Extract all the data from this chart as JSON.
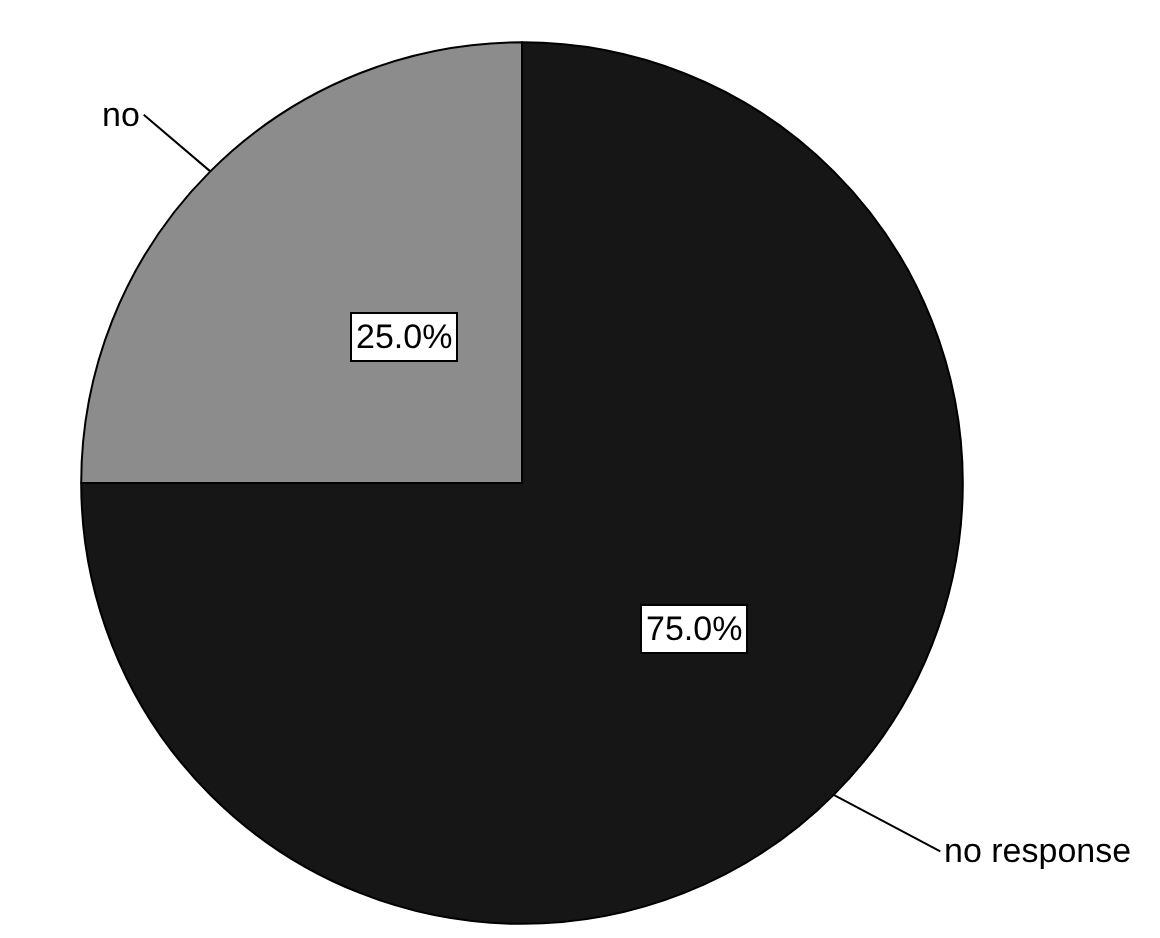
{
  "chart_data": {
    "type": "pie",
    "categories": [
      "no response",
      "no"
    ],
    "values": [
      75,
      25
    ],
    "colors": [
      "#161616",
      "#8c8c8c"
    ],
    "value_labels": [
      "75.0%",
      "25.0%"
    ],
    "legend": false
  }
}
